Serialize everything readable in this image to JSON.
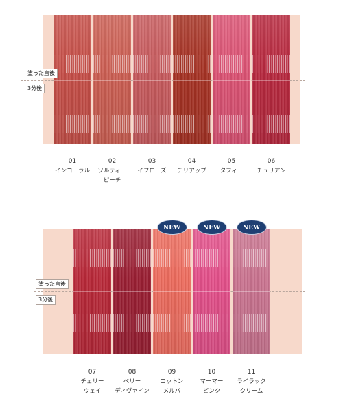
{
  "tags": {
    "applied": "塗った直後",
    "after": "3分後"
  },
  "new_badge": "NEW",
  "top_row": [
    {
      "number": "01",
      "name1": "インコーラル",
      "name2": "",
      "color": "#c64f48"
    },
    {
      "number": "02",
      "name1": "ソルティー",
      "name2": "ピーチ",
      "color": "#cc5f53"
    },
    {
      "number": "03",
      "name1": "イフローズ",
      "name2": "",
      "color": "#c75a5d"
    },
    {
      "number": "04",
      "name1": "チリアップ",
      "name2": "",
      "color": "#a63224"
    },
    {
      "number": "05",
      "name1": "タフィー",
      "name2": "",
      "color": "#dc5374"
    },
    {
      "number": "06",
      "name1": "チュリアン",
      "name2": "",
      "color": "#b8293f"
    }
  ],
  "bottom_row": [
    {
      "number": "07",
      "name1": "チェリー",
      "name2": "ウェイ",
      "color": "#b82838",
      "is_new": false
    },
    {
      "number": "08",
      "name1": "ベリー",
      "name2": "ディヴァイン",
      "color": "#9a1f33",
      "is_new": false
    },
    {
      "number": "09",
      "name1": "コットン",
      "name2": "メルバ",
      "color": "#ec6b5d",
      "is_new": true
    },
    {
      "number": "10",
      "name1": "マーマー",
      "name2": "ピンク",
      "color": "#e3508a",
      "is_new": true
    },
    {
      "number": "11",
      "name1": "ライラック",
      "name2": "クリーム",
      "color": "#c9738f",
      "is_new": true
    }
  ]
}
